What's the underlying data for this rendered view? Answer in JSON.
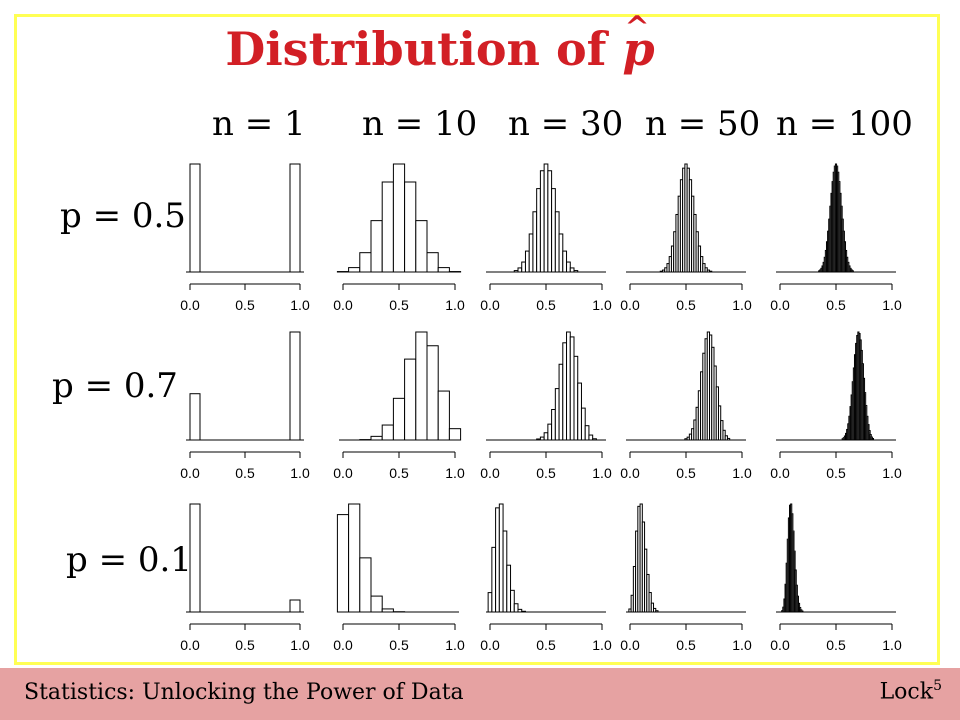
{
  "title": {
    "text": "Distribution of ",
    "var": "p",
    "hat": "^"
  },
  "n_labels": [
    "n = 1",
    "n = 10",
    "n = 30",
    "n = 50",
    "n = 100"
  ],
  "p_labels": [
    "p = 0.5",
    "p = 0.7",
    "p = 0.1"
  ],
  "footer": {
    "left": "Statistics: Unlocking the Power of Data",
    "right": "Lock",
    "right_sup": "5"
  },
  "chart_data": [
    {
      "type": "bar",
      "p": 0.5,
      "n": 1,
      "x_ticks": [
        "0.0",
        "0.5",
        "1.0"
      ],
      "bins": [
        0,
        1
      ],
      "values": [
        0.5,
        0.5
      ]
    },
    {
      "type": "bar",
      "p": 0.5,
      "n": 10,
      "x_ticks": [
        "0.0",
        "0.5",
        "1.0"
      ],
      "bins": [
        0,
        0.1,
        0.2,
        0.3,
        0.4,
        0.5,
        0.6,
        0.7,
        0.8,
        0.9,
        1.0
      ],
      "values": [
        0.001,
        0.01,
        0.044,
        0.117,
        0.205,
        0.246,
        0.205,
        0.117,
        0.044,
        0.01,
        0.001
      ]
    },
    {
      "type": "bar",
      "p": 0.5,
      "n": 30,
      "x_ticks": [
        "0.0",
        "0.5",
        "1.0"
      ],
      "center": 0.5,
      "shape": "normal"
    },
    {
      "type": "bar",
      "p": 0.5,
      "n": 50,
      "x_ticks": [
        "0.0",
        "0.5",
        "1.0"
      ],
      "center": 0.5,
      "shape": "normal"
    },
    {
      "type": "bar",
      "p": 0.5,
      "n": 100,
      "x_ticks": [
        "0.0",
        "0.5",
        "1.0"
      ],
      "center": 0.5,
      "shape": "normal"
    },
    {
      "type": "bar",
      "p": 0.7,
      "n": 1,
      "x_ticks": [
        "0.0",
        "0.5",
        "1.0"
      ],
      "bins": [
        0,
        1
      ],
      "values": [
        0.3,
        0.7
      ]
    },
    {
      "type": "bar",
      "p": 0.7,
      "n": 10,
      "x_ticks": [
        "0.0",
        "0.5",
        "1.0"
      ],
      "bins": [
        0.2,
        0.3,
        0.4,
        0.5,
        0.6,
        0.7,
        0.8,
        0.9,
        1.0
      ],
      "values": [
        0.001,
        0.009,
        0.037,
        0.103,
        0.2,
        0.267,
        0.233,
        0.121,
        0.028
      ]
    },
    {
      "type": "bar",
      "p": 0.7,
      "n": 30,
      "x_ticks": [
        "0.0",
        "0.5",
        "1.0"
      ],
      "center": 0.7,
      "shape": "normal"
    },
    {
      "type": "bar",
      "p": 0.7,
      "n": 50,
      "x_ticks": [
        "0.0",
        "0.5",
        "1.0"
      ],
      "center": 0.7,
      "shape": "normal"
    },
    {
      "type": "bar",
      "p": 0.7,
      "n": 100,
      "x_ticks": [
        "0.0",
        "0.5",
        "1.0"
      ],
      "center": 0.7,
      "shape": "normal"
    },
    {
      "type": "bar",
      "p": 0.1,
      "n": 1,
      "x_ticks": [
        "0.0",
        "0.5",
        "1.0"
      ],
      "bins": [
        0,
        1
      ],
      "values": [
        0.9,
        0.1
      ]
    },
    {
      "type": "bar",
      "p": 0.1,
      "n": 10,
      "x_ticks": [
        "0.0",
        "0.5",
        "1.0"
      ],
      "bins": [
        0,
        0.1,
        0.2,
        0.3,
        0.4,
        0.5
      ],
      "values": [
        0.349,
        0.387,
        0.194,
        0.057,
        0.011,
        0.001
      ]
    },
    {
      "type": "bar",
      "p": 0.1,
      "n": 30,
      "x_ticks": [
        "0.0",
        "0.5",
        "1.0"
      ],
      "center": 0.1,
      "shape": "right-skewed"
    },
    {
      "type": "bar",
      "p": 0.1,
      "n": 50,
      "x_ticks": [
        "0.0",
        "0.5",
        "1.0"
      ],
      "center": 0.1,
      "shape": "right-skewed"
    },
    {
      "type": "bar",
      "p": 0.1,
      "n": 100,
      "x_ticks": [
        "0.0",
        "0.5",
        "1.0"
      ],
      "center": 0.1,
      "shape": "right-skewed"
    }
  ]
}
